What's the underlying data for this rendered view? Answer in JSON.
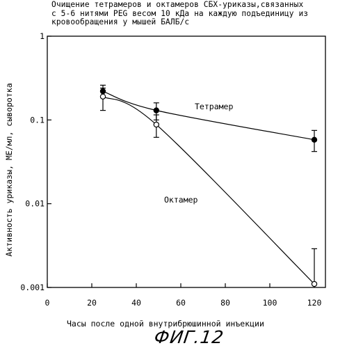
{
  "figure_label": "ФИГ.12",
  "chart_data": {
    "type": "line",
    "title_lines": [
      "Очищение тетрамеров и октамеров СБХ-уриказы,связанных",
      "с 5-6 нитями PEG весом 10 кДа на каждую подъединицу из",
      "кровообращения у мышей БАЛБ/с"
    ],
    "xlabel": "Часы после одной внутрибрюшинной инъекции",
    "ylabel": "Активность уриказы, МЕ/мл, сыворотка",
    "xlim": [
      0,
      125
    ],
    "ylim": [
      0.001,
      1
    ],
    "y_scale": "log",
    "x_ticks": [
      0,
      20,
      40,
      60,
      80,
      100,
      120
    ],
    "x_tick_labels": [
      "0",
      "20",
      "40",
      "60",
      "80",
      "100",
      "120"
    ],
    "y_ticks": [
      1,
      0.1,
      0.01,
      0.001
    ],
    "y_tick_labels": [
      "1",
      "0.1",
      "0.01",
      "0.001"
    ],
    "grid": false,
    "series": [
      {
        "name": "Тетрамер",
        "marker": "filled-circle",
        "x": [
          25,
          49,
          120
        ],
        "y": [
          0.22,
          0.13,
          0.058
        ],
        "err_low": [
          0.19,
          0.1,
          0.042
        ],
        "err_high": [
          0.26,
          0.16,
          0.075
        ]
      },
      {
        "name": "Октамер",
        "marker": "open-circle",
        "x": [
          25,
          49,
          120
        ],
        "y": [
          0.19,
          0.088,
          0.0011
        ],
        "err_low": [
          0.13,
          0.062,
          0.0011
        ],
        "err_high": [
          0.24,
          0.115,
          0.0029
        ]
      }
    ]
  }
}
